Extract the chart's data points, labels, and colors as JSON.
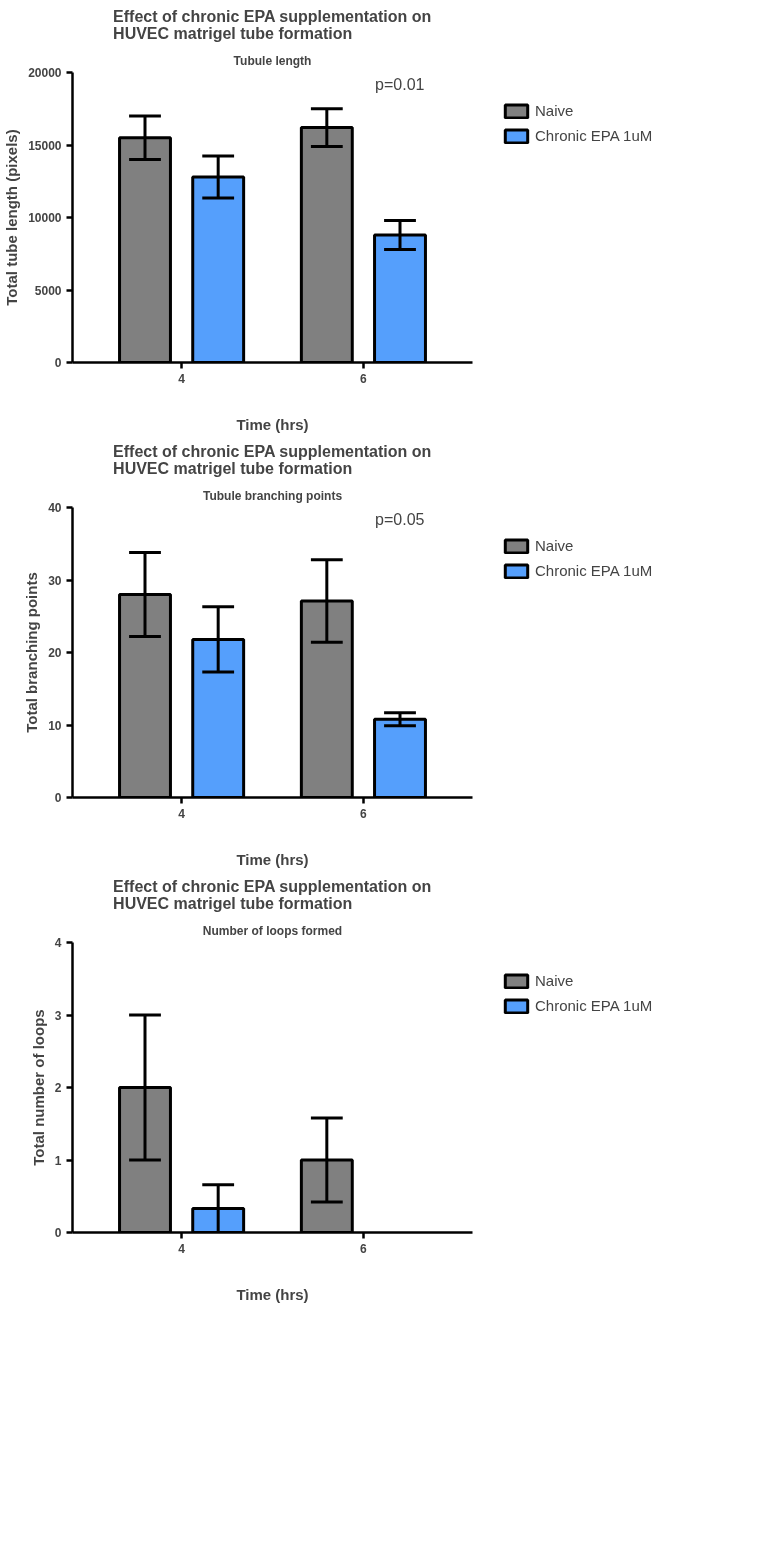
{
  "chart_data": [
    {
      "type": "bar",
      "title": "Effect of chronic EPA supplementation on\nHUVEC matrigel tube formation",
      "subtitle": "Tubule length",
      "xlabel": "Time (hrs)",
      "ylabel": "Total tube length (pixels)",
      "categories": [
        "4",
        "6"
      ],
      "series": [
        {
          "name": "Naive",
          "color": "#808080",
          "values": [
            15500,
            16200
          ],
          "errors": [
            1500,
            1300
          ]
        },
        {
          "name": "Chronic EPA 1uM",
          "color": "#559ffc",
          "values": [
            12800,
            8800
          ],
          "errors": [
            1450,
            1000
          ]
        }
      ],
      "ylim": [
        0,
        20000
      ],
      "yticks": [
        0,
        5000,
        10000,
        15000,
        20000
      ],
      "grid": false,
      "legend": "right",
      "annotations": [
        "p=0.01"
      ]
    },
    {
      "type": "bar",
      "title": "Effect of chronic EPA supplementation on\nHUVEC matrigel tube formation",
      "subtitle": "Tubule branching points",
      "xlabel": "Time (hrs)",
      "ylabel": "Total branching points",
      "categories": [
        "4",
        "6"
      ],
      "series": [
        {
          "name": "Naive",
          "color": "#808080",
          "values": [
            28,
            27.1
          ],
          "errors": [
            5.8,
            5.7
          ]
        },
        {
          "name": "Chronic EPA 1uM",
          "color": "#559ffc",
          "values": [
            21.8,
            10.8
          ],
          "errors": [
            4.5,
            0.9
          ]
        }
      ],
      "ylim": [
        0,
        40
      ],
      "yticks": [
        0,
        10,
        20,
        30,
        40
      ],
      "grid": false,
      "legend": "right",
      "annotations": [
        "p=0.05"
      ]
    },
    {
      "type": "bar",
      "title": "Effect of chronic EPA supplementation on\nHUVEC matrigel tube formation",
      "subtitle": "Number of loops formed",
      "xlabel": "Time (hrs)",
      "ylabel": "Total number of loops",
      "categories": [
        "4",
        "6"
      ],
      "series": [
        {
          "name": "Naive",
          "color": "#808080",
          "values": [
            2,
            1
          ],
          "errors": [
            1,
            0.58
          ]
        },
        {
          "name": "Chronic EPA 1uM",
          "color": "#559ffc",
          "values": [
            0.33,
            null
          ],
          "errors": [
            0.33,
            null
          ]
        }
      ],
      "ylim": [
        0,
        4
      ],
      "yticks": [
        0,
        1,
        2,
        3,
        4
      ],
      "grid": false,
      "legend": "right"
    }
  ]
}
